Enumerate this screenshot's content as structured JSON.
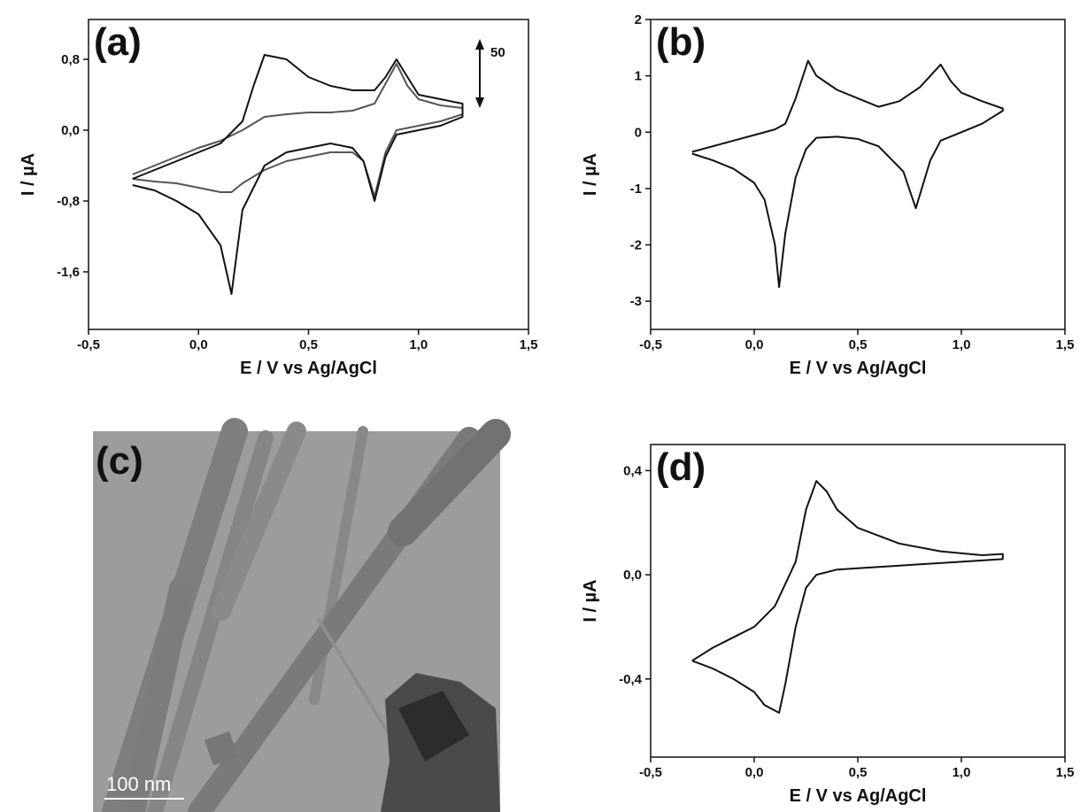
{
  "chart_data": [
    {
      "type": "line",
      "panel_label": "(a)",
      "annotation": "50",
      "xlabel": "E / V vs Ag/AgCl",
      "ylabel": "I / µA",
      "xlim": [
        -0.5,
        1.5
      ],
      "ylim": [
        -2.25,
        1.25
      ],
      "xticks": [
        {
          "value": -0.5,
          "label": "-0,5"
        },
        {
          "value": 0,
          "label": "0,0"
        },
        {
          "value": 0.5,
          "label": "0,5"
        },
        {
          "value": 1,
          "label": "1,0"
        },
        {
          "value": 1.5,
          "label": "1,5"
        }
      ],
      "yticks": [
        {
          "value": -1.6,
          "label": "-1,6"
        },
        {
          "value": -0.8,
          "label": "-0,8"
        },
        {
          "value": 0,
          "label": "0,0"
        },
        {
          "value": 0.8,
          "label": "0,8"
        }
      ],
      "series": [
        {
          "color": "#555555",
          "x": [
            -0.3,
            -0.1,
            0.0,
            0.1,
            0.2,
            0.3,
            0.4,
            0.5,
            0.6,
            0.7,
            0.8,
            0.9,
            0.95,
            1.0,
            1.1,
            1.2,
            1.2,
            1.1,
            1.0,
            0.9,
            0.85,
            0.8,
            0.75,
            0.7,
            0.6,
            0.5,
            0.4,
            0.3,
            0.2,
            0.15,
            0.1,
            0.0,
            -0.1,
            -0.2,
            -0.3
          ],
          "values": [
            -0.5,
            -0.3,
            -0.2,
            -0.12,
            0.0,
            0.15,
            0.18,
            0.2,
            0.2,
            0.22,
            0.3,
            0.75,
            0.5,
            0.35,
            0.28,
            0.25,
            0.18,
            0.1,
            0.05,
            0.0,
            -0.25,
            -0.75,
            -0.35,
            -0.25,
            -0.25,
            -0.3,
            -0.35,
            -0.45,
            -0.6,
            -0.7,
            -0.7,
            -0.65,
            -0.6,
            -0.58,
            -0.55
          ]
        },
        {
          "color": "#111111",
          "x": [
            -0.3,
            -0.1,
            0.0,
            0.1,
            0.2,
            0.25,
            0.3,
            0.4,
            0.5,
            0.6,
            0.7,
            0.8,
            0.85,
            0.9,
            0.95,
            1.0,
            1.1,
            1.2,
            1.2,
            1.1,
            1.0,
            0.9,
            0.85,
            0.8,
            0.75,
            0.7,
            0.6,
            0.5,
            0.4,
            0.3,
            0.2,
            0.15,
            0.1,
            0.0,
            -0.1,
            -0.2,
            -0.3
          ],
          "values": [
            -0.55,
            -0.35,
            -0.25,
            -0.15,
            0.1,
            0.5,
            0.85,
            0.8,
            0.6,
            0.5,
            0.45,
            0.45,
            0.6,
            0.8,
            0.6,
            0.4,
            0.35,
            0.3,
            0.15,
            0.05,
            0.0,
            -0.05,
            -0.3,
            -0.8,
            -0.35,
            -0.2,
            -0.15,
            -0.2,
            -0.25,
            -0.4,
            -0.9,
            -1.85,
            -1.3,
            -0.95,
            -0.8,
            -0.68,
            -0.62
          ]
        }
      ]
    },
    {
      "type": "line",
      "panel_label": "(b)",
      "xlabel": "E / V vs Ag/AgCl",
      "ylabel": "I / µA",
      "xlim": [
        -0.5,
        1.5
      ],
      "ylim": [
        -3.5,
        2
      ],
      "xticks": [
        {
          "value": -0.5,
          "label": "-0,5"
        },
        {
          "value": 0,
          "label": "0,0"
        },
        {
          "value": 0.5,
          "label": "0,5"
        },
        {
          "value": 1,
          "label": "1,0"
        },
        {
          "value": 1.5,
          "label": "1,5"
        }
      ],
      "yticks": [
        -3,
        -2,
        -1,
        0,
        1,
        2
      ],
      "series": [
        {
          "color": "#111111",
          "x": [
            -0.3,
            -0.1,
            0.0,
            0.1,
            0.15,
            0.2,
            0.26,
            0.3,
            0.4,
            0.5,
            0.6,
            0.7,
            0.8,
            0.9,
            0.95,
            1.0,
            1.1,
            1.2,
            1.2,
            1.1,
            1.0,
            0.9,
            0.85,
            0.78,
            0.72,
            0.6,
            0.5,
            0.4,
            0.3,
            0.25,
            0.2,
            0.15,
            0.12,
            0.1,
            0.05,
            0.0,
            -0.1,
            -0.2,
            -0.3
          ],
          "values": [
            -0.35,
            -0.15,
            -0.05,
            0.05,
            0.15,
            0.6,
            1.27,
            1.0,
            0.75,
            0.6,
            0.45,
            0.55,
            0.8,
            1.2,
            0.9,
            0.7,
            0.55,
            0.42,
            0.38,
            0.15,
            0.0,
            -0.15,
            -0.5,
            -1.35,
            -0.7,
            -0.25,
            -0.12,
            -0.08,
            -0.1,
            -0.3,
            -0.8,
            -1.8,
            -2.75,
            -2.0,
            -1.2,
            -0.9,
            -0.65,
            -0.5,
            -0.38
          ]
        }
      ]
    },
    {
      "type": "line",
      "panel_label": "(d)",
      "xlabel": "E / V vs Ag/AgCl",
      "ylabel": "I / µA",
      "xlim": [
        -0.5,
        1.5
      ],
      "ylim": [
        -0.7,
        0.5
      ],
      "xticks": [
        {
          "value": -0.5,
          "label": "-0,5"
        },
        {
          "value": 0,
          "label": "0,0"
        },
        {
          "value": 0.5,
          "label": "0,5"
        },
        {
          "value": 1,
          "label": "1,0"
        },
        {
          "value": 1.5,
          "label": "1,5"
        }
      ],
      "yticks": [
        {
          "value": -0.4,
          "label": "-0,4"
        },
        {
          "value": 0,
          "label": "0,0"
        },
        {
          "value": 0.4,
          "label": "0,4"
        }
      ],
      "series": [
        {
          "color": "#111111",
          "x": [
            -0.3,
            -0.2,
            -0.1,
            0.0,
            0.1,
            0.2,
            0.25,
            0.3,
            0.35,
            0.4,
            0.5,
            0.7,
            0.9,
            1.1,
            1.2,
            1.2,
            1.0,
            0.8,
            0.6,
            0.4,
            0.3,
            0.25,
            0.2,
            0.15,
            0.12,
            0.05,
            0.0,
            -0.1,
            -0.2,
            -0.3
          ],
          "values": [
            -0.33,
            -0.28,
            -0.24,
            -0.2,
            -0.12,
            0.05,
            0.25,
            0.36,
            0.32,
            0.25,
            0.18,
            0.12,
            0.09,
            0.075,
            0.08,
            0.06,
            0.05,
            0.04,
            0.03,
            0.02,
            0.0,
            -0.05,
            -0.2,
            -0.42,
            -0.53,
            -0.5,
            -0.45,
            -0.4,
            -0.36,
            -0.33
          ]
        }
      ]
    }
  ],
  "micrograph": {
    "panel_label": "(c)",
    "scale_bar": "100 nm"
  }
}
